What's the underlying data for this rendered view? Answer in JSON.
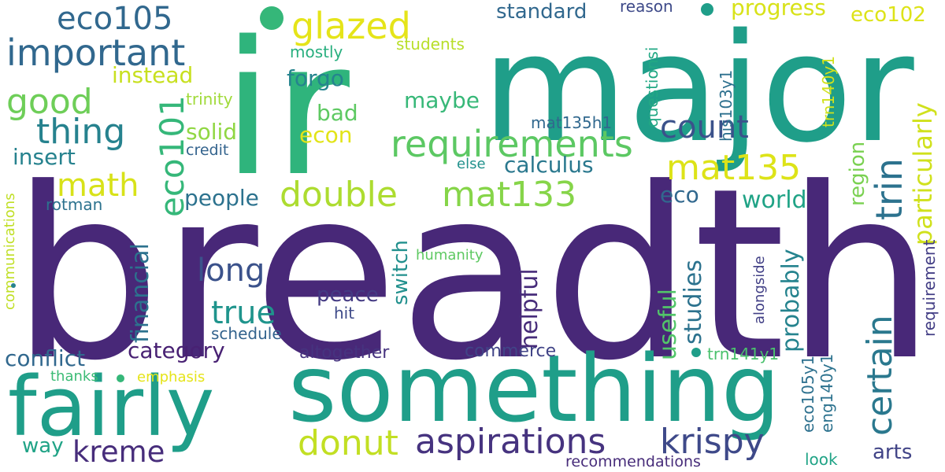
{
  "colors": {
    "background": "#ffffff",
    "purple": "#482878",
    "indigo": "#3e4989",
    "blue": "#31688e",
    "teal": "#26828e",
    "sea": "#1f9e89",
    "green": "#35b779",
    "lime": "#6ece58",
    "yellowgreen": "#b5de2b",
    "yellow": "#e5e419"
  },
  "words": [
    {
      "text": "breadth",
      "color": "#482878"
    },
    {
      "text": "ir",
      "color": "#2fb47c"
    },
    {
      "text": "major",
      "color": "#1f9e89"
    },
    {
      "text": "something",
      "color": "#1f9e89"
    },
    {
      "text": "fairly",
      "color": "#1f9e89"
    },
    {
      "text": "aspirations",
      "color": "#46337f"
    },
    {
      "text": "krispy",
      "color": "#3e4989"
    },
    {
      "text": "kreme",
      "color": "#472d7b"
    },
    {
      "text": "donut",
      "color": "#c2df23"
    },
    {
      "text": "requirements",
      "color": "#5cc863"
    },
    {
      "text": "double",
      "color": "#addc30"
    },
    {
      "text": "mat133",
      "color": "#86d549"
    },
    {
      "text": "mat135",
      "color": "#dde318"
    },
    {
      "text": "important",
      "color": "#31688e"
    },
    {
      "text": "eco105",
      "color": "#31688e"
    },
    {
      "text": "glazed",
      "color": "#e5e419"
    },
    {
      "text": "good",
      "color": "#6ece58"
    },
    {
      "text": "thing",
      "color": "#26828e"
    },
    {
      "text": "math",
      "color": "#d8e219"
    },
    {
      "text": "eco101",
      "color": "#35b779"
    },
    {
      "text": "count",
      "color": "#3b528b"
    },
    {
      "text": "trin",
      "color": "#2c728e"
    },
    {
      "text": "certain",
      "color": "#2a788e"
    },
    {
      "text": "particularly",
      "color": "#d0e11c"
    },
    {
      "text": "long",
      "color": "#3b528b"
    },
    {
      "text": "true",
      "color": "#1f948c"
    },
    {
      "text": "category",
      "color": "#482173"
    },
    {
      "text": "conflict",
      "color": "#31688e"
    },
    {
      "text": "financial",
      "color": "#2c728e"
    },
    {
      "text": "studies",
      "color": "#2c728e"
    },
    {
      "text": "probably",
      "color": "#25838e"
    },
    {
      "text": "helpful",
      "color": "#472c7a"
    },
    {
      "text": "useful",
      "color": "#52c569"
    },
    {
      "text": "switch",
      "color": "#21908d"
    },
    {
      "text": "peace",
      "color": "#443a83"
    },
    {
      "text": "people",
      "color": "#2c728e"
    },
    {
      "text": "solid",
      "color": "#90d743"
    },
    {
      "text": "calculus",
      "color": "#2a788e"
    },
    {
      "text": "world",
      "color": "#20a386"
    },
    {
      "text": "region",
      "color": "#7ad151"
    },
    {
      "text": "eco",
      "color": "#31688e"
    },
    {
      "text": "arts",
      "color": "#414487"
    },
    {
      "text": "way",
      "color": "#20a386"
    },
    {
      "text": "standard",
      "color": "#31688e"
    },
    {
      "text": "progress",
      "color": "#d8e219"
    },
    {
      "text": "eco102",
      "color": "#dde318"
    },
    {
      "text": "instead",
      "color": "#c8e020"
    },
    {
      "text": "forgo",
      "color": "#25848e"
    },
    {
      "text": "maybe",
      "color": "#37b878"
    },
    {
      "text": "bad",
      "color": "#5ec962"
    },
    {
      "text": "econ",
      "color": "#e2e418"
    },
    {
      "text": "insert",
      "color": "#26828e"
    },
    {
      "text": "else",
      "color": "#21918c"
    },
    {
      "text": "credit",
      "color": "#33638d"
    },
    {
      "text": "trinity",
      "color": "#a0da39"
    },
    {
      "text": "mostly",
      "color": "#29af7f"
    },
    {
      "text": "students",
      "color": "#b8de29"
    },
    {
      "text": "reason",
      "color": "#3e4a89"
    },
    {
      "text": "mat135h1",
      "color": "#31688e"
    },
    {
      "text": "questionsi",
      "color": "#22a884"
    },
    {
      "text": "his103y1",
      "color": "#2d708e"
    },
    {
      "text": "trn140y1",
      "color": "#d0e11c"
    },
    {
      "text": "rotman",
      "color": "#2c728e"
    },
    {
      "text": "communications",
      "color": "#c0df25"
    },
    {
      "text": "humanity",
      "color": "#5ec962"
    },
    {
      "text": "schedule",
      "color": "#33638d"
    },
    {
      "text": "hit",
      "color": "#3e4a89"
    },
    {
      "text": "altogether",
      "color": "#46337f"
    },
    {
      "text": "commerce",
      "color": "#414487"
    },
    {
      "text": "thanks",
      "color": "#3bbb75"
    },
    {
      "text": "emphasis",
      "color": "#e5e419"
    },
    {
      "text": "trn141y1",
      "color": "#4ac16d"
    },
    {
      "text": "alongside",
      "color": "#424086"
    },
    {
      "text": "eco105y1",
      "color": "#2d708e"
    },
    {
      "text": "eng140y1",
      "color": "#2c728e"
    },
    {
      "text": "requirement",
      "color": "#433e85"
    },
    {
      "text": "recommendations",
      "color": "#472c7a"
    },
    {
      "text": "look",
      "color": "#20a386"
    }
  ],
  "dots": [
    {
      "color": "#35b779"
    },
    {
      "color": "#1f9e89"
    },
    {
      "color": "#1f9e89"
    },
    {
      "color": "#35b779"
    },
    {
      "color": "#26828e"
    }
  ]
}
